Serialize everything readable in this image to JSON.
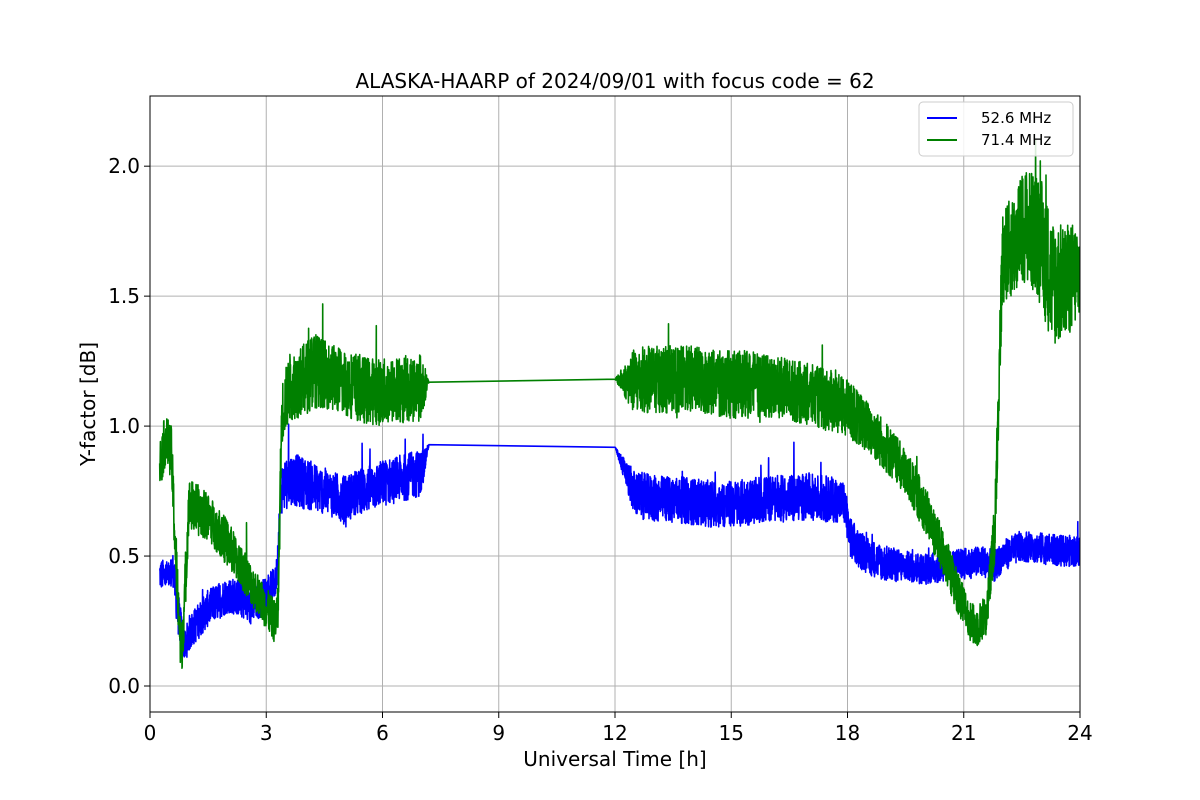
{
  "chart_data": {
    "type": "line",
    "title": "ALASKA-HAARP of 2024/09/01 with focus code = 62",
    "xlabel": "Universal Time [h]",
    "ylabel": "Y-factor [dB]",
    "xlim": [
      0,
      24
    ],
    "ylim": [
      -0.1,
      2.27
    ],
    "xticks": [
      0,
      3,
      6,
      9,
      12,
      15,
      18,
      21,
      24
    ],
    "xtick_labels": [
      "0",
      "3",
      "6",
      "9",
      "12",
      "15",
      "18",
      "21",
      "24"
    ],
    "yticks": [
      0.0,
      0.5,
      1.0,
      1.5,
      2.0
    ],
    "ytick_labels": [
      "0.0",
      "0.5",
      "1.0",
      "1.5",
      "2.0"
    ],
    "grid": true,
    "legend_position": "top-right",
    "series": [
      {
        "name": "52.6 MHz",
        "color": "#0000ff",
        "x": [
          0.25,
          0.5,
          0.6,
          0.7,
          0.8,
          0.9,
          1.0,
          1.2,
          1.5,
          1.8,
          2.0,
          2.3,
          2.6,
          2.9,
          3.1,
          3.25,
          3.4,
          3.6,
          4.0,
          4.5,
          5.0,
          5.5,
          6.0,
          6.5,
          7.0,
          7.2,
          12.0,
          12.5,
          13.0,
          13.5,
          14.0,
          14.5,
          15.0,
          15.5,
          16.0,
          16.5,
          17.0,
          17.5,
          17.9,
          18.1,
          18.5,
          19.0,
          19.5,
          20.0,
          20.5,
          21.0,
          21.5,
          21.8,
          22.0,
          22.5,
          23.0,
          23.5,
          24.0
        ],
        "y": [
          0.43,
          0.42,
          0.45,
          0.3,
          0.22,
          0.15,
          0.2,
          0.24,
          0.3,
          0.33,
          0.35,
          0.34,
          0.3,
          0.34,
          0.38,
          0.4,
          0.76,
          0.8,
          0.78,
          0.75,
          0.72,
          0.75,
          0.78,
          0.8,
          0.82,
          0.93,
          0.92,
          0.74,
          0.72,
          0.72,
          0.71,
          0.7,
          0.7,
          0.71,
          0.72,
          0.72,
          0.73,
          0.72,
          0.71,
          0.56,
          0.5,
          0.47,
          0.46,
          0.45,
          0.46,
          0.47,
          0.48,
          0.46,
          0.5,
          0.54,
          0.53,
          0.52,
          0.52
        ],
        "amp": [
          0.06,
          0.06,
          0.07,
          0.08,
          0.08,
          0.06,
          0.07,
          0.07,
          0.07,
          0.07,
          0.07,
          0.07,
          0.07,
          0.07,
          0.06,
          0.06,
          0.1,
          0.1,
          0.1,
          0.09,
          0.09,
          0.09,
          0.09,
          0.09,
          0.09,
          0.0,
          0.0,
          0.09,
          0.09,
          0.09,
          0.09,
          0.09,
          0.09,
          0.09,
          0.09,
          0.09,
          0.09,
          0.09,
          0.08,
          0.08,
          0.07,
          0.07,
          0.06,
          0.06,
          0.06,
          0.06,
          0.06,
          0.06,
          0.06,
          0.06,
          0.06,
          0.06,
          0.06
        ]
      },
      {
        "name": "71.4 MHz",
        "color": "#008000",
        "x": [
          0.25,
          0.4,
          0.55,
          0.65,
          0.8,
          0.9,
          1.0,
          1.2,
          1.5,
          2.0,
          2.5,
          3.0,
          3.2,
          3.3,
          3.4,
          3.6,
          4.0,
          4.2,
          4.5,
          5.0,
          5.5,
          6.0,
          6.5,
          7.0,
          7.2,
          12.0,
          12.5,
          13.0,
          13.5,
          14.0,
          14.5,
          15.0,
          15.5,
          16.0,
          16.5,
          17.0,
          17.5,
          18.0,
          18.5,
          19.0,
          19.5,
          20.0,
          20.5,
          21.0,
          21.3,
          21.6,
          21.8,
          22.0,
          22.3,
          22.6,
          23.0,
          23.3,
          23.6,
          24.0
        ],
        "y": [
          0.85,
          0.95,
          0.9,
          0.55,
          0.1,
          0.35,
          0.7,
          0.68,
          0.65,
          0.55,
          0.42,
          0.3,
          0.25,
          0.28,
          1.05,
          1.15,
          1.18,
          1.22,
          1.2,
          1.17,
          1.14,
          1.13,
          1.14,
          1.15,
          1.17,
          1.18,
          1.17,
          1.18,
          1.18,
          1.18,
          1.17,
          1.16,
          1.16,
          1.15,
          1.14,
          1.12,
          1.1,
          1.07,
          1.0,
          0.92,
          0.82,
          0.68,
          0.5,
          0.3,
          0.22,
          0.28,
          0.6,
          1.65,
          1.7,
          1.78,
          1.7,
          1.55,
          1.55,
          1.6
        ],
        "amp": [
          0.1,
          0.1,
          0.1,
          0.12,
          0.1,
          0.12,
          0.1,
          0.1,
          0.09,
          0.09,
          0.08,
          0.08,
          0.08,
          0.1,
          0.12,
          0.13,
          0.14,
          0.15,
          0.13,
          0.13,
          0.13,
          0.13,
          0.13,
          0.13,
          0.0,
          0.0,
          0.13,
          0.13,
          0.13,
          0.13,
          0.13,
          0.13,
          0.13,
          0.12,
          0.12,
          0.12,
          0.12,
          0.11,
          0.1,
          0.1,
          0.09,
          0.09,
          0.09,
          0.08,
          0.08,
          0.08,
          0.12,
          0.18,
          0.2,
          0.22,
          0.25,
          0.25,
          0.22,
          0.2
        ]
      }
    ]
  }
}
